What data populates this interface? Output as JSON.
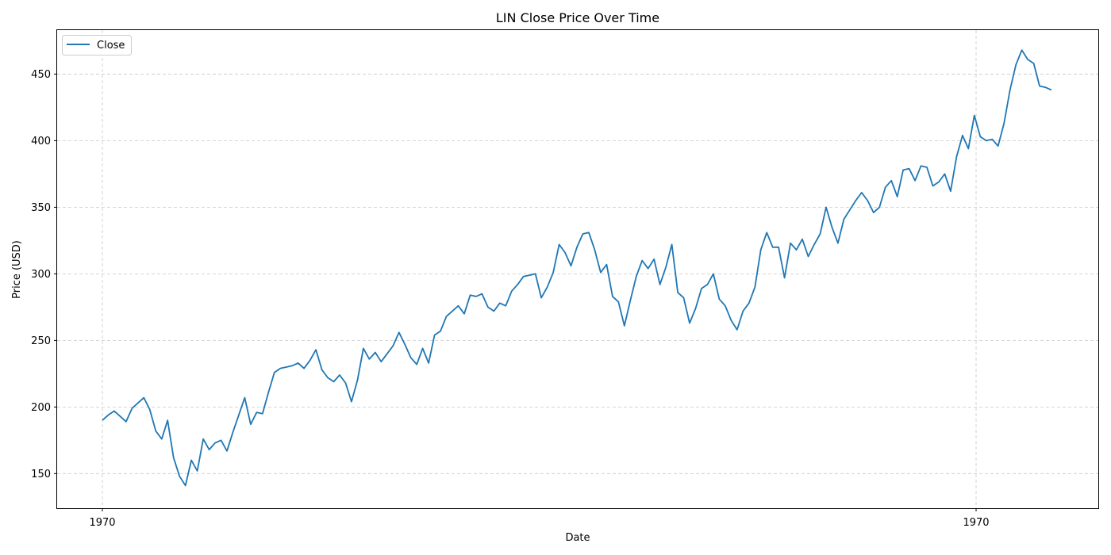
{
  "chart_data": {
    "type": "line",
    "title": "LIN Close Price Over Time",
    "xlabel": "Date",
    "ylabel": "Price (USD)",
    "x_tick_labels": [
      "1970",
      "1970"
    ],
    "y_ticks": [
      150,
      200,
      250,
      300,
      350,
      400,
      450
    ],
    "ylim": [
      124,
      483
    ],
    "grid": true,
    "grid_style": "dashed",
    "legend": {
      "position": "top-left",
      "entries": [
        "Close"
      ]
    },
    "series": [
      {
        "name": "Close",
        "color": "#1f77b4",
        "values": [
          190,
          194,
          197,
          193,
          189,
          199,
          203,
          207,
          198,
          182,
          176,
          190,
          162,
          148,
          141,
          160,
          152,
          176,
          168,
          173,
          175,
          167,
          181,
          194,
          207,
          187,
          196,
          195,
          211,
          226,
          229,
          230,
          231,
          233,
          229,
          235,
          243,
          228,
          222,
          219,
          224,
          218,
          204,
          220,
          244,
          236,
          241,
          234,
          240,
          246,
          256,
          247,
          237,
          232,
          244,
          233,
          254,
          257,
          268,
          272,
          276,
          270,
          284,
          283,
          285,
          275,
          272,
          278,
          276,
          287,
          292,
          298,
          299,
          300,
          282,
          290,
          301,
          322,
          316,
          306,
          320,
          330,
          331,
          318,
          301,
          307,
          283,
          279,
          261,
          280,
          298,
          310,
          304,
          311,
          292,
          305,
          322,
          286,
          282,
          263,
          274,
          289,
          292,
          300,
          281,
          276,
          265,
          258,
          272,
          278,
          290,
          318,
          331,
          320,
          320,
          297,
          323,
          318,
          326,
          313,
          322,
          330,
          350,
          335,
          323,
          341,
          348,
          355,
          361,
          355,
          346,
          350,
          365,
          370,
          358,
          378,
          379,
          370,
          381,
          380,
          366,
          369,
          375,
          362,
          388,
          404,
          394,
          419,
          403,
          400,
          401,
          396,
          413,
          438,
          457,
          468,
          461,
          458,
          441,
          440,
          438
        ]
      }
    ]
  }
}
